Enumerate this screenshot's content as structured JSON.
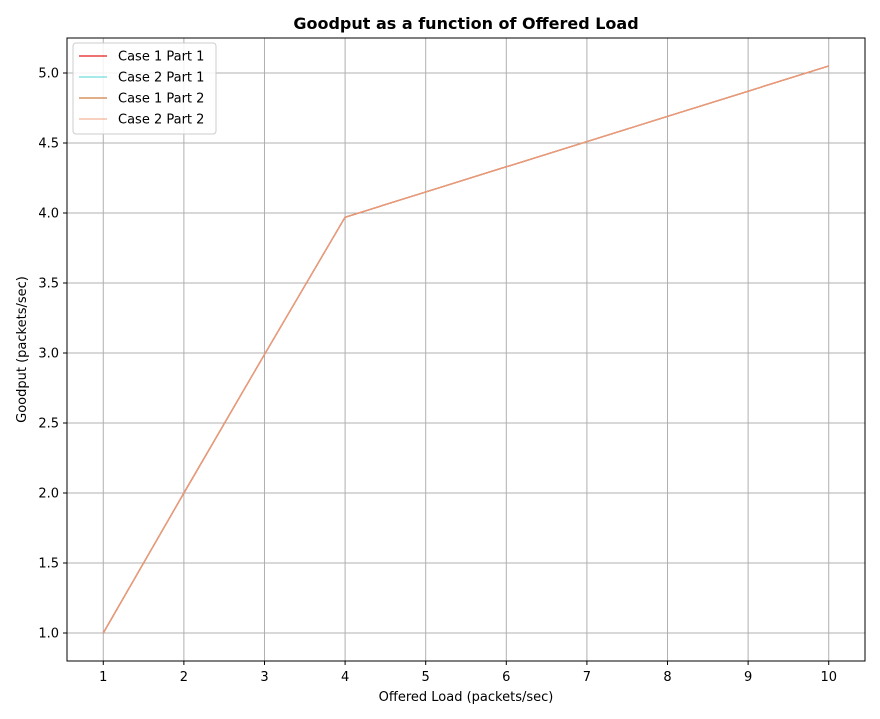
{
  "chart_data": {
    "type": "line",
    "title": "Goodput as a function of Offered Load",
    "xlabel": "Offered Load (packets/sec)",
    "ylabel": "Goodput (packets/sec)",
    "xlim": [
      0.55,
      10.45
    ],
    "ylim": [
      0.8,
      5.25
    ],
    "xticks": [
      1,
      2,
      3,
      4,
      5,
      6,
      7,
      8,
      9,
      10
    ],
    "yticks": [
      1.0,
      1.5,
      2.0,
      2.5,
      3.0,
      3.5,
      4.0,
      4.5,
      5.0
    ],
    "ytick_labels": [
      "1.0",
      "1.5",
      "2.0",
      "2.5",
      "3.0",
      "3.5",
      "4.0",
      "4.5",
      "5.0"
    ],
    "grid": true,
    "legend_position": "top-left",
    "x": [
      1,
      2,
      3,
      4,
      5,
      6,
      7,
      8,
      9,
      10
    ],
    "series": [
      {
        "name": "Case 1 Part 1",
        "color": "#e41a1c",
        "width": 1.3,
        "values": [
          1.0,
          2.0,
          2.99,
          3.97,
          4.15,
          4.33,
          4.51,
          4.69,
          4.87,
          5.05
        ]
      },
      {
        "name": "Case 2 Part 1",
        "color": "#4fd6d6",
        "width": 1.0,
        "values": [
          1.0,
          2.0,
          2.99,
          3.97,
          4.15,
          4.33,
          4.51,
          4.69,
          4.87,
          5.05
        ]
      },
      {
        "name": "Case 1 Part 2",
        "color": "#cd7f45",
        "width": 1.3,
        "values": [
          1.0,
          2.0,
          2.99,
          3.97,
          4.15,
          4.33,
          4.51,
          4.69,
          4.87,
          5.05
        ]
      },
      {
        "name": "Case 2 Part 2",
        "color": "#f0a080",
        "width": 1.0,
        "values": [
          1.0,
          2.0,
          2.99,
          3.97,
          4.15,
          4.33,
          4.51,
          4.69,
          4.87,
          5.05
        ]
      }
    ]
  }
}
